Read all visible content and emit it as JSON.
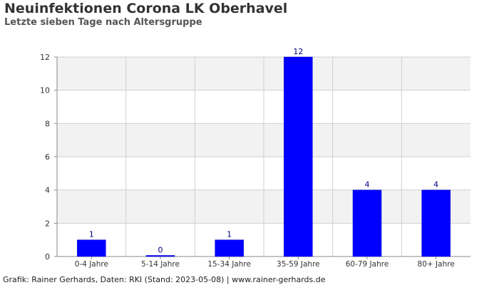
{
  "title": "Neuinfektionen Corona LK Oberhavel",
  "subtitle": "Letzte sieben Tage nach Altersgruppe",
  "footer": "Grafik: Rainer Gerhards, Daten: RKI (Stand: 2023-05-08) | www.rainer-gerhards.de",
  "colors": {
    "bar": "#0000ff",
    "bar_label": "#000080",
    "band": "#f2f2f2",
    "grid": "#d0d0d0",
    "axis": "#888888",
    "tick_label": "#333333"
  },
  "chart_data": {
    "type": "bar",
    "categories": [
      "0-4 Jahre",
      "5-14 Jahre",
      "15-34 Jahre",
      "35-59 Jahre",
      "60-79 Jahre",
      "80+ Jahre"
    ],
    "values": [
      1,
      0,
      1,
      12,
      4,
      4
    ],
    "ylim": [
      0,
      12
    ],
    "yticks": [
      0,
      2,
      4,
      6,
      8,
      10,
      12
    ],
    "grid": true,
    "data_labels": true,
    "legend": "none"
  }
}
